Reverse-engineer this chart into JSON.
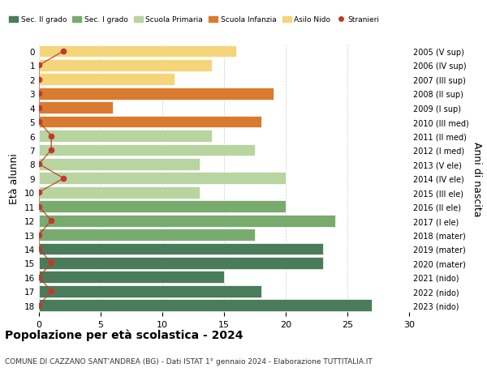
{
  "ages": [
    18,
    17,
    16,
    15,
    14,
    13,
    12,
    11,
    10,
    9,
    8,
    7,
    6,
    5,
    4,
    3,
    2,
    1,
    0
  ],
  "values": [
    27,
    18,
    15,
    23,
    23,
    17.5,
    24,
    20,
    13,
    20,
    13,
    17.5,
    14,
    18,
    6,
    19,
    11,
    14,
    16
  ],
  "colors": [
    "#4a7c59",
    "#4a7c59",
    "#4a7c59",
    "#4a7c59",
    "#4a7c59",
    "#7aab6e",
    "#7aab6e",
    "#7aab6e",
    "#b8d4a0",
    "#b8d4a0",
    "#b8d4a0",
    "#b8d4a0",
    "#b8d4a0",
    "#d97b2e",
    "#d97b2e",
    "#d97b2e",
    "#f5d57a",
    "#f5d57a",
    "#f5d57a"
  ],
  "right_labels": [
    "2005 (V sup)",
    "2006 (IV sup)",
    "2007 (III sup)",
    "2008 (II sup)",
    "2009 (I sup)",
    "2010 (III med)",
    "2011 (II med)",
    "2012 (I med)",
    "2013 (V ele)",
    "2014 (IV ele)",
    "2015 (III ele)",
    "2016 (II ele)",
    "2017 (I ele)",
    "2018 (mater)",
    "2019 (mater)",
    "2020 (mater)",
    "2021 (nido)",
    "2022 (nido)",
    "2023 (nido)"
  ],
  "legend_labels": [
    "Sec. II grado",
    "Sec. I grado",
    "Scuola Primaria",
    "Scuola Infanzia",
    "Asilo Nido",
    "Stranieri"
  ],
  "legend_colors": [
    "#4a7c59",
    "#7aab6e",
    "#b8d4a0",
    "#d97b2e",
    "#f5d57a",
    "#c0392b"
  ],
  "ylabel": "Età alunni",
  "right_ylabel": "Anni di nascita",
  "title": "Popolazione per età scolastica - 2024",
  "subtitle": "COMUNE DI CAZZANO SANT'ANDREA (BG) - Dati ISTAT 1° gennaio 2024 - Elaborazione TUTTITALIA.IT",
  "xlim": [
    0,
    30
  ],
  "xticks": [
    0,
    5,
    10,
    15,
    20,
    25,
    30
  ],
  "background_color": "#ffffff",
  "stranieri_color": "#c0392b",
  "stranieri_x_values": [
    0,
    1,
    0,
    1,
    0,
    0,
    1,
    0,
    0,
    2,
    0,
    1,
    1,
    0,
    0,
    0,
    0,
    0,
    2
  ]
}
